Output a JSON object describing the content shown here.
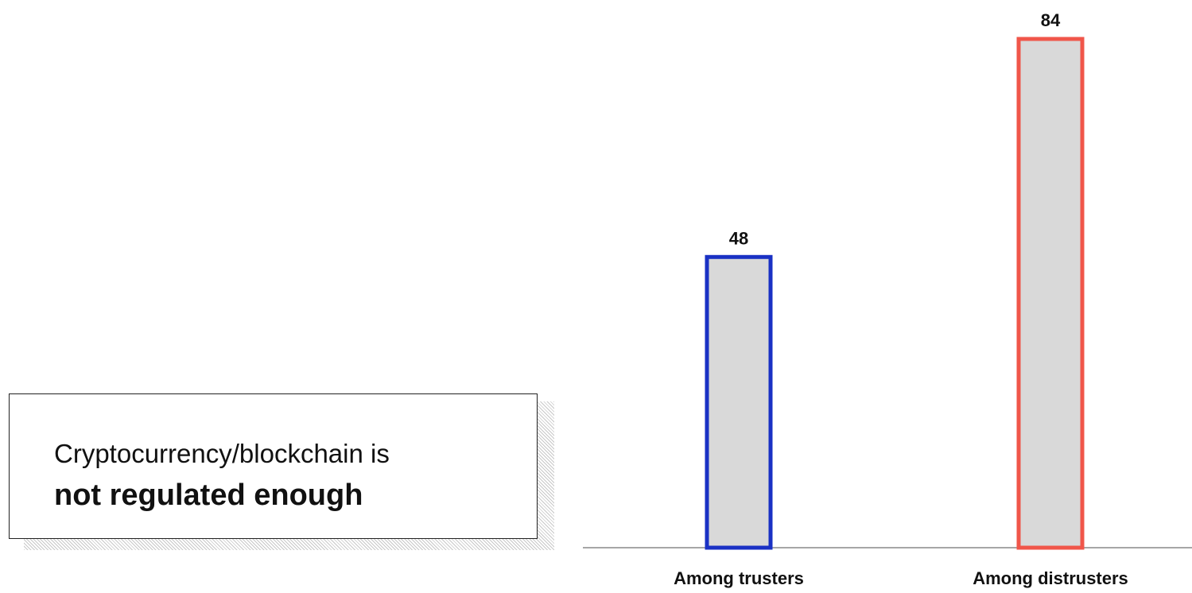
{
  "callout": {
    "line1": "Cryptocurrency/blockchain is",
    "line2": "not regulated enough"
  },
  "chart_data": {
    "type": "bar",
    "categories": [
      "Among trusters",
      "Among distrusters"
    ],
    "values": [
      48,
      84
    ],
    "bar_fill": "#d9d9d9",
    "bar_outline_colors": [
      "#1a31c4",
      "#f0564a"
    ],
    "baseline_color": "#a6a6a6",
    "ylim": [
      0,
      84
    ],
    "title": "",
    "xlabel": "",
    "ylabel": ""
  }
}
